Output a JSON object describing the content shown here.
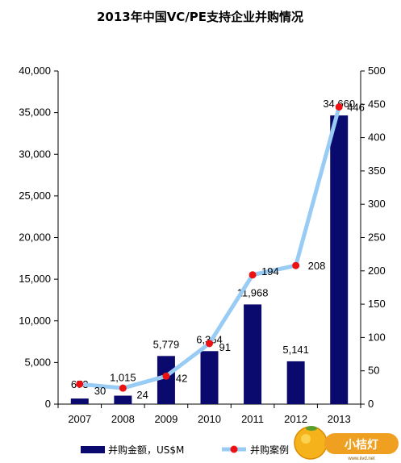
{
  "chart_data": {
    "type": "bar",
    "title": "2013年中国VC/PE支持企业并购情况",
    "categories": [
      "2007",
      "2008",
      "2009",
      "2010",
      "2011",
      "2012",
      "2013"
    ],
    "series": [
      {
        "name": "并购金额，US$M",
        "type": "bar",
        "axis": "left",
        "values": [
          673,
          1015,
          5779,
          6364,
          11968,
          5141,
          34660
        ],
        "labels": [
          "673",
          "1,015",
          "5,779",
          "6,364",
          "11,968",
          "5,141",
          "34,660"
        ]
      },
      {
        "name": "并购案例",
        "type": "line",
        "axis": "right",
        "values": [
          30,
          24,
          42,
          91,
          194,
          208,
          446
        ],
        "labels": [
          "30",
          "24",
          "42",
          "91",
          "194",
          "208",
          "446"
        ]
      }
    ],
    "y_left": {
      "lim": [
        0,
        40000
      ],
      "ticks": [
        0,
        5000,
        10000,
        15000,
        20000,
        25000,
        30000,
        35000,
        40000
      ],
      "tick_labels": [
        "0",
        "5,000",
        "10,000",
        "15,000",
        "20,000",
        "25,000",
        "30,000",
        "35,000",
        "40,000"
      ]
    },
    "y_right": {
      "lim": [
        0,
        500
      ],
      "ticks": [
        0,
        50,
        100,
        150,
        200,
        250,
        300,
        350,
        400,
        450,
        500
      ],
      "tick_labels": [
        "0",
        "50",
        "100",
        "150",
        "200",
        "250",
        "300",
        "350",
        "400",
        "450",
        "500"
      ]
    },
    "grid": false,
    "legend_position": "bottom",
    "colors": {
      "bar": "#0a0a6e",
      "line": "#99ccf5",
      "marker": "#ee1111"
    }
  },
  "watermark": {
    "text": "小桔灯",
    "subtext": "www.iivd.net"
  }
}
